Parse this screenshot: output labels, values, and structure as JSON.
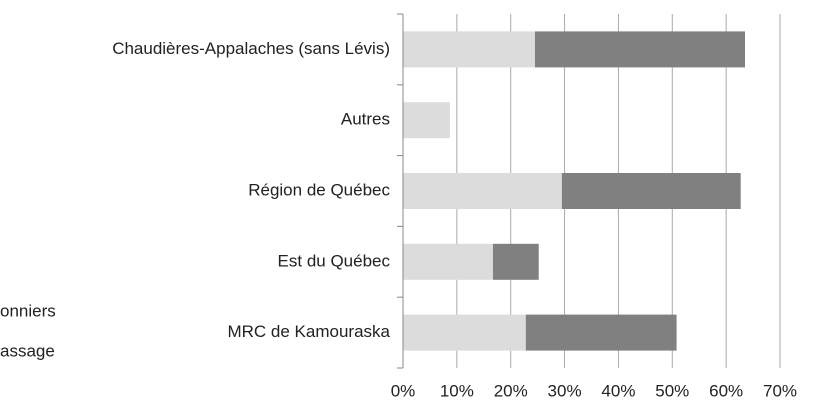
{
  "chart_data": {
    "type": "stacked_bar_horizontal",
    "categories": [
      "Chaudières-Appalaches (sans Lévis)",
      "Autres",
      "Région de Québec",
      "Est du Québec",
      "MRC de Kamouraska"
    ],
    "series": [
      {
        "name": "onniers",
        "color": "#dcdcdc",
        "values": [
          24.5,
          8.7,
          29.5,
          16.7,
          22.8
        ]
      },
      {
        "name": "assage",
        "color": "#808080",
        "values": [
          39,
          0,
          33.2,
          8.5,
          28
        ]
      }
    ],
    "xlim": [
      0,
      70
    ],
    "xticks": [
      {
        "value": 0,
        "label": "0%"
      },
      {
        "value": 10,
        "label": "10%"
      },
      {
        "value": 20,
        "label": "20%"
      },
      {
        "value": 30,
        "label": "30%"
      },
      {
        "value": 40,
        "label": "40%"
      },
      {
        "value": 50,
        "label": "50%"
      },
      {
        "value": 60,
        "label": "60%"
      },
      {
        "value": 70,
        "label": "70%"
      }
    ],
    "grid": true
  }
}
